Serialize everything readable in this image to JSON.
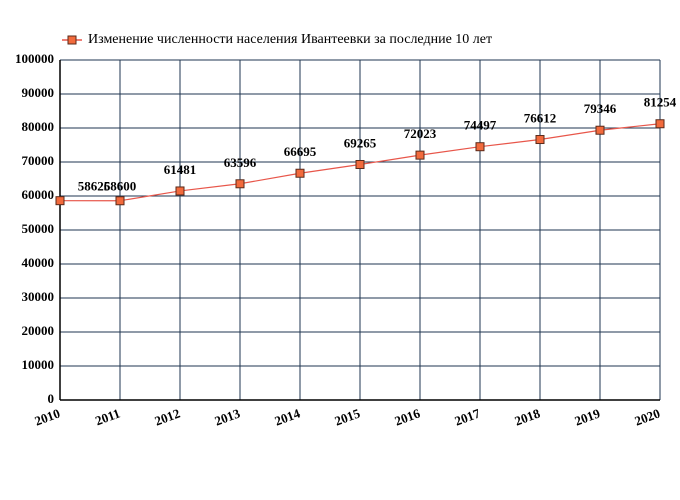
{
  "chart_data": {
    "type": "line",
    "x": [
      2010,
      2011,
      2012,
      2013,
      2014,
      2015,
      2016,
      2017,
      2018,
      2019,
      2020
    ],
    "xlim": [
      2010,
      2020
    ],
    "xticks": [
      2010,
      2011,
      2012,
      2013,
      2014,
      2015,
      2016,
      2017,
      2018,
      2019,
      2020
    ],
    "ylim": [
      0,
      100000
    ],
    "yticks": [
      0,
      10000,
      20000,
      30000,
      40000,
      50000,
      60000,
      70000,
      80000,
      90000,
      100000
    ],
    "grid": true,
    "legend": "top-left",
    "series": [
      {
        "name": "Изменение численности населения Ивантеевки за последние 10 лет",
        "color": "#e8564a",
        "values": [
          58626,
          58600,
          61481,
          63596,
          66695,
          69265,
          72023,
          74497,
          76612,
          79346,
          81254
        ]
      }
    ]
  }
}
